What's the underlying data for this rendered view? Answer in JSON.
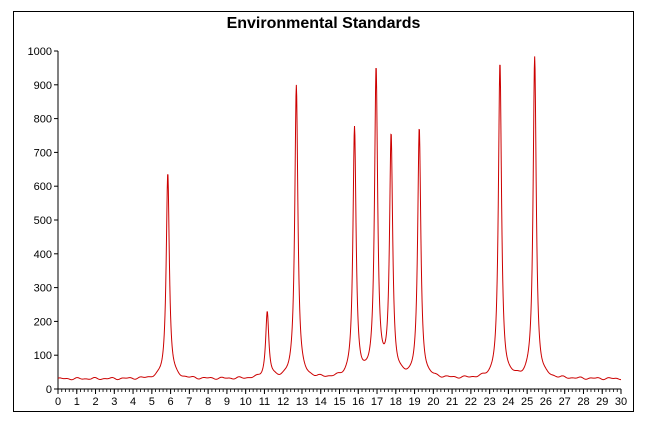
{
  "chart_data": {
    "type": "line",
    "title": "Environmental Standards",
    "xlabel": "",
    "ylabel": "",
    "xlim": [
      0,
      30
    ],
    "ylim": [
      0,
      1000
    ],
    "x_ticks": [
      "0",
      "1",
      "2",
      "3",
      "4",
      "5",
      "6",
      "7",
      "8",
      "9",
      "10",
      "11",
      "12",
      "13",
      "14",
      "15",
      "16",
      "17",
      "18",
      "19",
      "20",
      "21",
      "22",
      "23",
      "24",
      "25",
      "26",
      "27",
      "28",
      "29",
      "30"
    ],
    "y_ticks": [
      "0",
      "100",
      "200",
      "300",
      "400",
      "500",
      "600",
      "700",
      "800",
      "900",
      "1000"
    ],
    "grid": false,
    "legend": "none",
    "baseline": 30,
    "series": [
      {
        "color": "#cc0000",
        "peaks": [
          {
            "x": 5.85,
            "y": 640
          },
          {
            "x": 11.15,
            "y": 225
          },
          {
            "x": 12.7,
            "y": 900
          },
          {
            "x": 15.8,
            "y": 765
          },
          {
            "x": 16.95,
            "y": 940
          },
          {
            "x": 17.75,
            "y": 740
          },
          {
            "x": 19.25,
            "y": 765
          },
          {
            "x": 23.55,
            "y": 960
          },
          {
            "x": 25.4,
            "y": 980
          }
        ]
      }
    ]
  }
}
